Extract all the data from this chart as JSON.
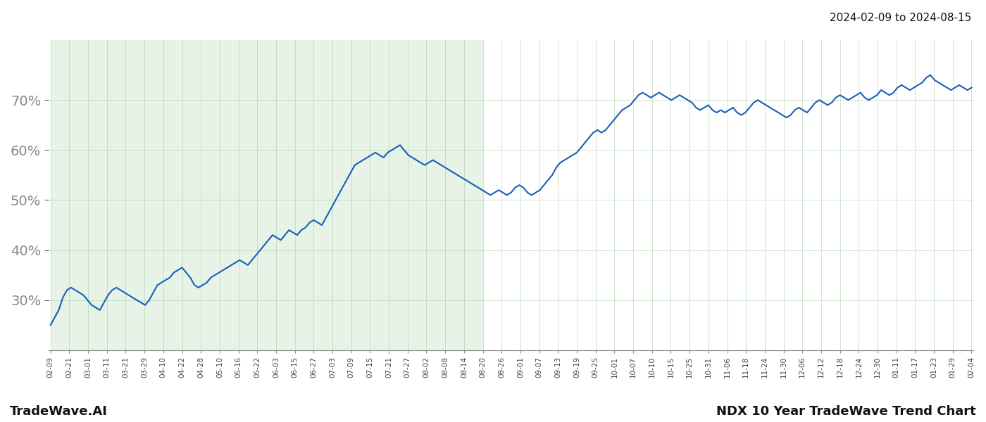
{
  "title_date_range": "2024-02-09 to 2024-08-15",
  "footer_left": "TradeWave.AI",
  "footer_right": "NDX 10 Year TradeWave Trend Chart",
  "shade_color": "#c8e6c9",
  "shade_alpha": 0.45,
  "line_color": "#1a5eb8",
  "line_width": 1.5,
  "grid_color": "#a0c8a0",
  "grid_alpha": 0.5,
  "background_color": "#ffffff",
  "y_ticks": [
    30,
    40,
    50,
    60,
    70
  ],
  "ylim": [
    20,
    82
  ],
  "x_labels": [
    "02-09",
    "02-21",
    "03-01",
    "03-11",
    "03-21",
    "03-29",
    "04-10",
    "04-22",
    "04-28",
    "05-10",
    "05-16",
    "05-22",
    "06-03",
    "06-15",
    "06-27",
    "07-03",
    "07-09",
    "07-15",
    "07-21",
    "07-27",
    "08-02",
    "08-08",
    "08-14",
    "08-20",
    "08-26",
    "09-01",
    "09-07",
    "09-13",
    "09-19",
    "09-25",
    "10-01",
    "10-07",
    "10-10",
    "10-15",
    "10-25",
    "10-31",
    "11-06",
    "11-18",
    "11-24",
    "11-30",
    "12-06",
    "12-12",
    "12-18",
    "12-24",
    "12-30",
    "01-11",
    "01-17",
    "01-23",
    "01-29",
    "02-04"
  ],
  "shade_end_label": "08-20",
  "y_values": [
    25.0,
    26.5,
    28.0,
    30.5,
    32.0,
    32.5,
    32.0,
    31.5,
    31.0,
    30.0,
    29.0,
    28.5,
    28.0,
    29.5,
    31.0,
    32.0,
    32.5,
    32.0,
    31.5,
    31.0,
    30.5,
    30.0,
    29.5,
    29.0,
    30.0,
    31.5,
    33.0,
    33.5,
    34.0,
    34.5,
    35.5,
    36.0,
    36.5,
    35.5,
    34.5,
    33.0,
    32.5,
    33.0,
    33.5,
    34.5,
    35.0,
    35.5,
    36.0,
    36.5,
    37.0,
    37.5,
    38.0,
    37.5,
    37.0,
    38.0,
    39.0,
    40.0,
    41.0,
    42.0,
    43.0,
    42.5,
    42.0,
    43.0,
    44.0,
    43.5,
    43.0,
    44.0,
    44.5,
    45.5,
    46.0,
    45.5,
    45.0,
    46.5,
    48.0,
    49.5,
    51.0,
    52.5,
    54.0,
    55.5,
    57.0,
    57.5,
    58.0,
    58.5,
    59.0,
    59.5,
    59.0,
    58.5,
    59.5,
    60.0,
    60.5,
    61.0,
    60.0,
    59.0,
    58.5,
    58.0,
    57.5,
    57.0,
    57.5,
    58.0,
    57.5,
    57.0,
    56.5,
    56.0,
    55.5,
    55.0,
    54.5,
    54.0,
    53.5,
    53.0,
    52.5,
    52.0,
    51.5,
    51.0,
    51.5,
    52.0,
    51.5,
    51.0,
    51.5,
    52.5,
    53.0,
    52.5,
    51.5,
    51.0,
    51.5,
    52.0,
    53.0,
    54.0,
    55.0,
    56.5,
    57.5,
    58.0,
    58.5,
    59.0,
    59.5,
    60.5,
    61.5,
    62.5,
    63.5,
    64.0,
    63.5,
    64.0,
    65.0,
    66.0,
    67.0,
    68.0,
    68.5,
    69.0,
    70.0,
    71.0,
    71.5,
    71.0,
    70.5,
    71.0,
    71.5,
    71.0,
    70.5,
    70.0,
    70.5,
    71.0,
    70.5,
    70.0,
    69.5,
    68.5,
    68.0,
    68.5,
    69.0,
    68.0,
    67.5,
    68.0,
    67.5,
    68.0,
    68.5,
    67.5,
    67.0,
    67.5,
    68.5,
    69.5,
    70.0,
    69.5,
    69.0,
    68.5,
    68.0,
    67.5,
    67.0,
    66.5,
    67.0,
    68.0,
    68.5,
    68.0,
    67.5,
    68.5,
    69.5,
    70.0,
    69.5,
    69.0,
    69.5,
    70.5,
    71.0,
    70.5,
    70.0,
    70.5,
    71.0,
    71.5,
    70.5,
    70.0,
    70.5,
    71.0,
    72.0,
    71.5,
    71.0,
    71.5,
    72.5,
    73.0,
    72.5,
    72.0,
    72.5,
    73.0,
    73.5,
    74.5,
    75.0,
    74.0,
    73.5,
    73.0,
    72.5,
    72.0,
    72.5,
    73.0,
    72.5,
    72.0,
    72.5
  ]
}
